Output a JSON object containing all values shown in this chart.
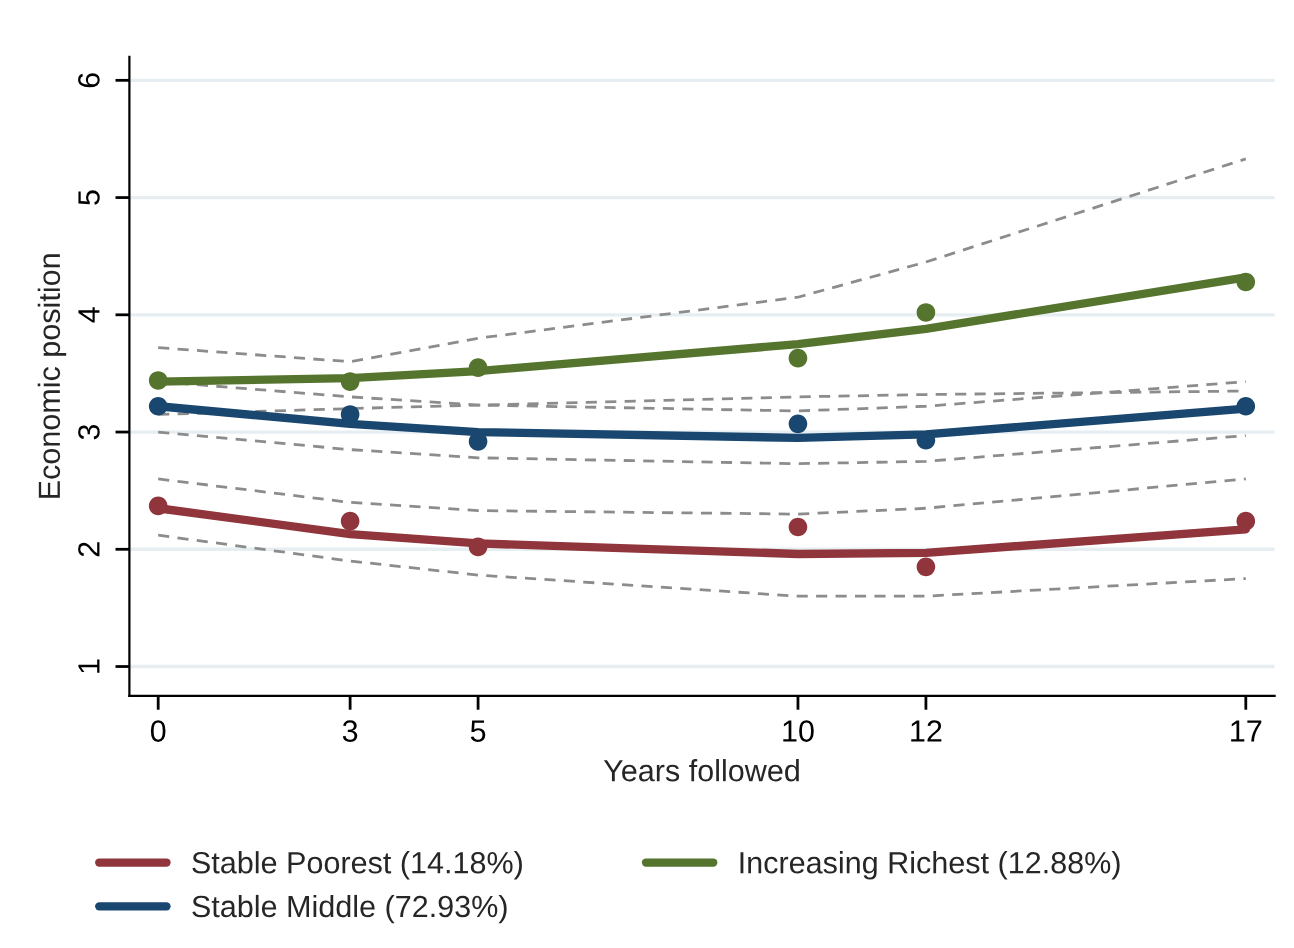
{
  "chart_data": {
    "type": "line",
    "xlabel": "Years followed",
    "ylabel": "Economic position",
    "x": [
      0,
      3,
      5,
      10,
      12,
      17
    ],
    "xlim": [
      -0.45,
      17.45
    ],
    "xticks": [
      0,
      3,
      5,
      10,
      12,
      17
    ],
    "ylim": [
      0.75,
      6.2
    ],
    "yticks": [
      1,
      2,
      3,
      4,
      5,
      6
    ],
    "grid": "y",
    "legend": "bottom",
    "marker": "none",
    "line_style": "solid",
    "series": [
      {
        "color": "#8c8c8c",
        "line_style": "dashed",
        "values": [
          2.12,
          1.9,
          1.78,
          1.6,
          1.6,
          1.75
        ]
      },
      {
        "color": "#8c8c8c",
        "line_style": "dashed",
        "values": [
          2.6,
          2.4,
          2.33,
          2.3,
          2.35,
          2.6
        ]
      },
      {
        "color": "#8c8c8c",
        "line_style": "dashed",
        "values": [
          3.0,
          2.85,
          2.78,
          2.73,
          2.75,
          2.97
        ]
      },
      {
        "color": "#8c8c8c",
        "line_style": "dashed",
        "values": [
          3.43,
          3.3,
          3.23,
          3.18,
          3.22,
          3.43
        ]
      },
      {
        "color": "#8c8c8c",
        "line_style": "dashed",
        "values": [
          3.15,
          3.2,
          3.23,
          3.3,
          3.32,
          3.35
        ]
      },
      {
        "color": "#8c8c8c",
        "line_style": "dashed",
        "values": [
          3.72,
          3.6,
          3.8,
          4.15,
          4.45,
          5.33
        ]
      },
      {
        "name": "Stable Poorest (14.18%)",
        "color": "#90353b",
        "values": [
          2.35,
          2.13,
          2.05,
          1.96,
          1.97,
          2.17
        ]
      },
      {
        "name": "Stable Middle (72.93%)",
        "color": "#1a476f",
        "values": [
          3.22,
          3.07,
          3.0,
          2.95,
          2.98,
          3.2
        ]
      },
      {
        "name": "Increasing Richest (12.88%)",
        "color": "#55752f",
        "values": [
          3.43,
          3.46,
          3.52,
          3.75,
          3.88,
          4.32
        ]
      },
      {
        "type": "scatter",
        "marker": "circle",
        "color": "#90353b",
        "values": [
          2.37,
          2.24,
          2.02,
          2.19,
          1.85,
          2.24
        ]
      },
      {
        "type": "scatter",
        "marker": "circle",
        "color": "#1a476f",
        "values": [
          3.22,
          3.15,
          2.92,
          3.07,
          2.93,
          3.22
        ]
      },
      {
        "type": "scatter",
        "marker": "circle",
        "color": "#55752f",
        "values": [
          3.44,
          3.43,
          3.55,
          3.63,
          4.02,
          4.28
        ]
      }
    ]
  }
}
